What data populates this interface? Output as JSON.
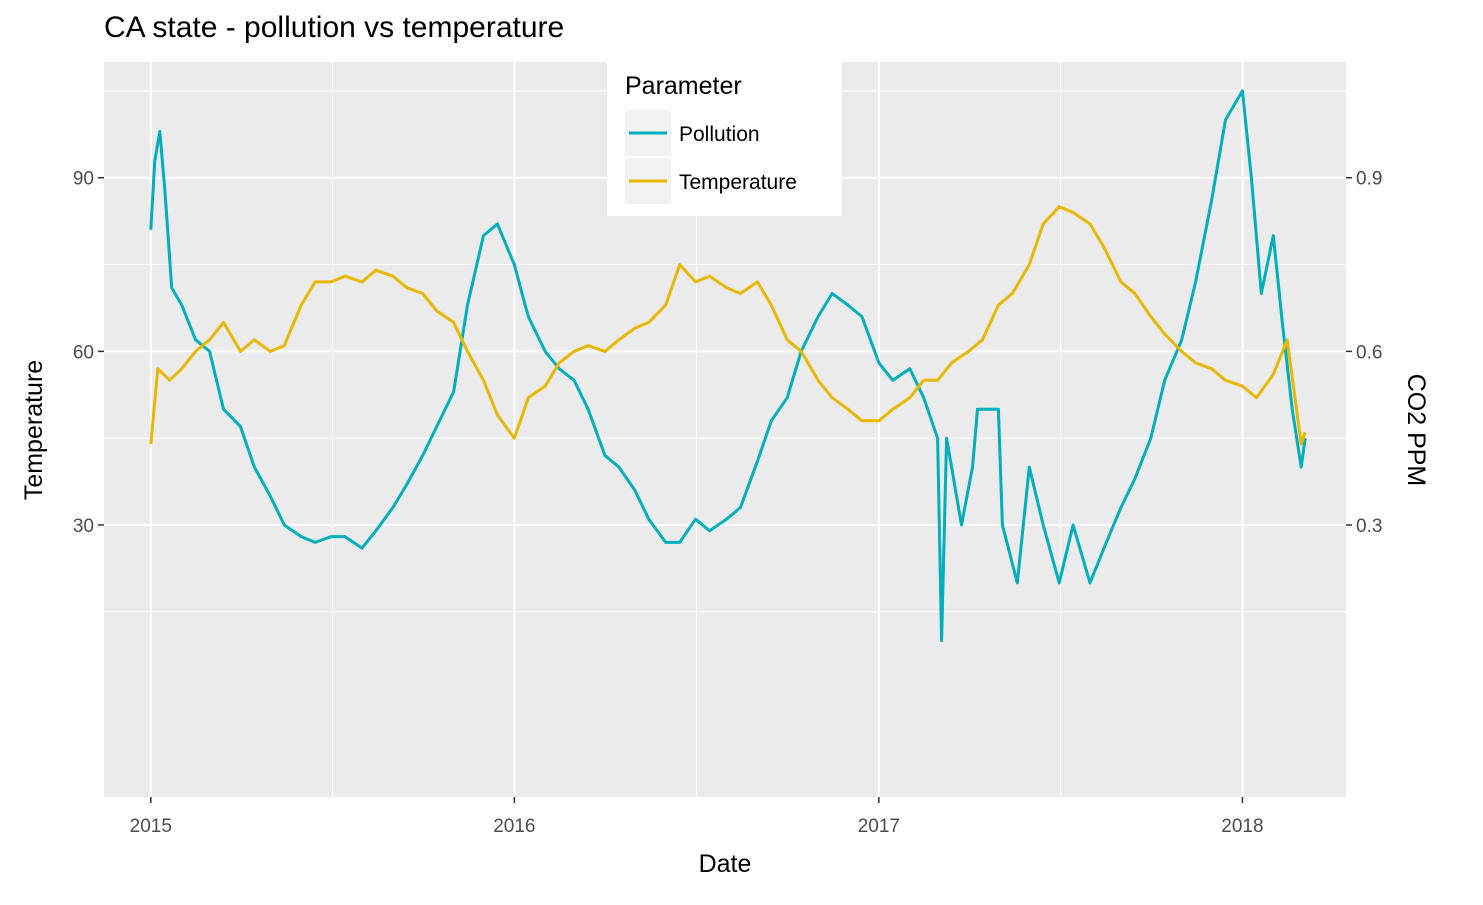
{
  "chart_data": {
    "type": "line",
    "title": "CA state - pollution vs temperature",
    "xlabel": "Date",
    "ylabel": "Temperature",
    "y2label": "CO2 PPM",
    "xlim": [
      "2014-11-15",
      "2018-04-15"
    ],
    "ylim": [
      -17,
      110
    ],
    "y2lim": [
      -0.17,
      1.1
    ],
    "x_ticks": [
      {
        "label": "2015",
        "date": "2015-01-01"
      },
      {
        "label": "2016",
        "date": "2016-01-01"
      },
      {
        "label": "2017",
        "date": "2017-01-01"
      },
      {
        "label": "2018",
        "date": "2018-01-01"
      }
    ],
    "y_ticks": [
      30,
      60,
      90
    ],
    "y2_ticks": [
      "0.3",
      "0.6",
      "0.9"
    ],
    "grid": true,
    "legend": {
      "title": "Parameter",
      "placement": "top-center",
      "entries": [
        "Pollution",
        "Temperature"
      ]
    },
    "series": [
      {
        "name": "Pollution",
        "axis": "right",
        "color": "#00AFBB",
        "points": [
          [
            "2015-01-01",
            0.81
          ],
          [
            "2015-01-05",
            0.93
          ],
          [
            "2015-01-10",
            0.98
          ],
          [
            "2015-01-15",
            0.88
          ],
          [
            "2015-01-22",
            0.71
          ],
          [
            "2015-02-01",
            0.68
          ],
          [
            "2015-02-15",
            0.62
          ],
          [
            "2015-03-01",
            0.6
          ],
          [
            "2015-03-15",
            0.5
          ],
          [
            "2015-04-01",
            0.47
          ],
          [
            "2015-04-15",
            0.4
          ],
          [
            "2015-05-01",
            0.35
          ],
          [
            "2015-05-15",
            0.3
          ],
          [
            "2015-06-01",
            0.28
          ],
          [
            "2015-06-15",
            0.27
          ],
          [
            "2015-07-01",
            0.28
          ],
          [
            "2015-07-15",
            0.28
          ],
          [
            "2015-08-01",
            0.26
          ],
          [
            "2015-08-15",
            0.29
          ],
          [
            "2015-09-01",
            0.33
          ],
          [
            "2015-09-15",
            0.37
          ],
          [
            "2015-10-01",
            0.42
          ],
          [
            "2015-10-15",
            0.47
          ],
          [
            "2015-11-01",
            0.53
          ],
          [
            "2015-11-15",
            0.68
          ],
          [
            "2015-12-01",
            0.8
          ],
          [
            "2015-12-15",
            0.82
          ],
          [
            "2016-01-01",
            0.75
          ],
          [
            "2016-01-15",
            0.66
          ],
          [
            "2016-02-01",
            0.6
          ],
          [
            "2016-02-15",
            0.57
          ],
          [
            "2016-03-01",
            0.55
          ],
          [
            "2016-03-15",
            0.5
          ],
          [
            "2016-04-01",
            0.42
          ],
          [
            "2016-04-15",
            0.4
          ],
          [
            "2016-05-01",
            0.36
          ],
          [
            "2016-05-15",
            0.31
          ],
          [
            "2016-06-01",
            0.27
          ],
          [
            "2016-06-15",
            0.27
          ],
          [
            "2016-07-01",
            0.31
          ],
          [
            "2016-07-15",
            0.29
          ],
          [
            "2016-08-01",
            0.31
          ],
          [
            "2016-08-15",
            0.33
          ],
          [
            "2016-09-01",
            0.41
          ],
          [
            "2016-09-15",
            0.48
          ],
          [
            "2016-10-01",
            0.52
          ],
          [
            "2016-10-15",
            0.6
          ],
          [
            "2016-11-01",
            0.66
          ],
          [
            "2016-11-15",
            0.7
          ],
          [
            "2016-12-01",
            0.68
          ],
          [
            "2016-12-15",
            0.66
          ],
          [
            "2017-01-01",
            0.58
          ],
          [
            "2017-01-15",
            0.55
          ],
          [
            "2017-02-01",
            0.57
          ],
          [
            "2017-02-15",
            0.52
          ],
          [
            "2017-03-01",
            0.45
          ],
          [
            "2017-03-05",
            0.1
          ],
          [
            "2017-03-10",
            0.45
          ],
          [
            "2017-03-15",
            0.4
          ],
          [
            "2017-03-25",
            0.3
          ],
          [
            "2017-04-05",
            0.4
          ],
          [
            "2017-04-10",
            0.5
          ],
          [
            "2017-05-01",
            0.5
          ],
          [
            "2017-05-05",
            0.3
          ],
          [
            "2017-05-20",
            0.2
          ],
          [
            "2017-06-01",
            0.4
          ],
          [
            "2017-06-15",
            0.3
          ],
          [
            "2017-07-01",
            0.2
          ],
          [
            "2017-07-15",
            0.3
          ],
          [
            "2017-08-01",
            0.2
          ],
          [
            "2017-08-15",
            0.26
          ],
          [
            "2017-09-01",
            0.33
          ],
          [
            "2017-09-15",
            0.38
          ],
          [
            "2017-10-01",
            0.45
          ],
          [
            "2017-10-15",
            0.55
          ],
          [
            "2017-11-01",
            0.62
          ],
          [
            "2017-11-15",
            0.72
          ],
          [
            "2017-12-01",
            0.86
          ],
          [
            "2017-12-15",
            1.0
          ],
          [
            "2018-01-01",
            1.05
          ],
          [
            "2018-01-10",
            0.9
          ],
          [
            "2018-01-20",
            0.7
          ],
          [
            "2018-02-01",
            0.8
          ],
          [
            "2018-02-10",
            0.65
          ],
          [
            "2018-02-20",
            0.5
          ],
          [
            "2018-03-01",
            0.4
          ],
          [
            "2018-03-05",
            0.45
          ]
        ]
      },
      {
        "name": "Temperature",
        "axis": "left",
        "color": "#E7B800",
        "points": [
          [
            "2015-01-01",
            44
          ],
          [
            "2015-01-08",
            57
          ],
          [
            "2015-01-20",
            55
          ],
          [
            "2015-02-01",
            57
          ],
          [
            "2015-02-15",
            60
          ],
          [
            "2015-03-01",
            62
          ],
          [
            "2015-03-15",
            65
          ],
          [
            "2015-04-01",
            60
          ],
          [
            "2015-04-15",
            62
          ],
          [
            "2015-05-01",
            60
          ],
          [
            "2015-05-15",
            61
          ],
          [
            "2015-06-01",
            68
          ],
          [
            "2015-06-15",
            72
          ],
          [
            "2015-07-01",
            72
          ],
          [
            "2015-07-15",
            73
          ],
          [
            "2015-08-01",
            72
          ],
          [
            "2015-08-15",
            74
          ],
          [
            "2015-09-01",
            73
          ],
          [
            "2015-09-15",
            71
          ],
          [
            "2015-10-01",
            70
          ],
          [
            "2015-10-15",
            67
          ],
          [
            "2015-11-01",
            65
          ],
          [
            "2015-11-15",
            60
          ],
          [
            "2015-12-01",
            55
          ],
          [
            "2015-12-15",
            49
          ],
          [
            "2016-01-01",
            45
          ],
          [
            "2016-01-15",
            52
          ],
          [
            "2016-02-01",
            54
          ],
          [
            "2016-02-15",
            58
          ],
          [
            "2016-03-01",
            60
          ],
          [
            "2016-03-15",
            61
          ],
          [
            "2016-04-01",
            60
          ],
          [
            "2016-04-15",
            62
          ],
          [
            "2016-05-01",
            64
          ],
          [
            "2016-05-15",
            65
          ],
          [
            "2016-06-01",
            68
          ],
          [
            "2016-06-15",
            75
          ],
          [
            "2016-07-01",
            72
          ],
          [
            "2016-07-15",
            73
          ],
          [
            "2016-08-01",
            71
          ],
          [
            "2016-08-15",
            70
          ],
          [
            "2016-09-01",
            72
          ],
          [
            "2016-09-15",
            68
          ],
          [
            "2016-10-01",
            62
          ],
          [
            "2016-10-15",
            60
          ],
          [
            "2016-11-01",
            55
          ],
          [
            "2016-11-15",
            52
          ],
          [
            "2016-12-01",
            50
          ],
          [
            "2016-12-15",
            48
          ],
          [
            "2017-01-01",
            48
          ],
          [
            "2017-01-15",
            50
          ],
          [
            "2017-02-01",
            52
          ],
          [
            "2017-02-15",
            55
          ],
          [
            "2017-03-01",
            55
          ],
          [
            "2017-03-15",
            58
          ],
          [
            "2017-04-01",
            60
          ],
          [
            "2017-04-15",
            62
          ],
          [
            "2017-05-01",
            68
          ],
          [
            "2017-05-15",
            70
          ],
          [
            "2017-06-01",
            75
          ],
          [
            "2017-06-15",
            82
          ],
          [
            "2017-07-01",
            85
          ],
          [
            "2017-07-15",
            84
          ],
          [
            "2017-08-01",
            82
          ],
          [
            "2017-08-15",
            78
          ],
          [
            "2017-09-01",
            72
          ],
          [
            "2017-09-15",
            70
          ],
          [
            "2017-10-01",
            66
          ],
          [
            "2017-10-15",
            63
          ],
          [
            "2017-11-01",
            60
          ],
          [
            "2017-11-15",
            58
          ],
          [
            "2017-12-01",
            57
          ],
          [
            "2017-12-15",
            55
          ],
          [
            "2018-01-01",
            54
          ],
          [
            "2018-01-15",
            52
          ],
          [
            "2018-02-01",
            56
          ],
          [
            "2018-02-15",
            62
          ],
          [
            "2018-03-01",
            44
          ],
          [
            "2018-03-05",
            46
          ]
        ]
      }
    ]
  }
}
